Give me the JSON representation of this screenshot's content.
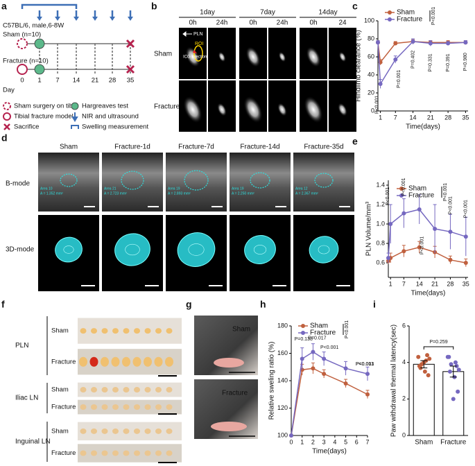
{
  "panel_labels": [
    "a",
    "b",
    "c",
    "d",
    "e",
    "f",
    "g",
    "h",
    "i"
  ],
  "design": {
    "strain": "C57BL/6, male,6-8W",
    "groups": [
      "Sham (n=10)",
      "Fracture (n=10)"
    ],
    "day_label": "Day",
    "days": [
      0,
      1,
      7,
      14,
      21,
      28,
      35
    ],
    "legend": [
      "Sham surgery on tibia",
      "Hargreaves test",
      "Tibial fracture model",
      "NIR and ultrasound",
      "Sacrifice",
      "Swelling measurement"
    ]
  },
  "imaging": {
    "timepoints": [
      "1day",
      "7day",
      "14day"
    ],
    "times": [
      "0h",
      "24h",
      "0h",
      "24h",
      "0h",
      "24"
    ],
    "rows": [
      "Sham",
      "Fracture"
    ],
    "callouts": [
      "PLN",
      "ROI",
      "ICG injection"
    ]
  },
  "ultrasound": {
    "columns": [
      "Sham",
      "Fracture-1d",
      "Fracture-7d",
      "Fracture-14d",
      "Fracture-35d"
    ],
    "rows": [
      "B-mode",
      "3D-mode"
    ],
    "areas": [
      [
        "Area 10",
        "A = 1.352 mm²"
      ],
      [
        "Area 21",
        "A = 2.723 mm²"
      ],
      [
        "Area 19",
        "A = 2.893 mm²"
      ],
      [
        "Area 19",
        "A = 2.250 mm²"
      ],
      [
        "Area 12",
        "A = 2.367 mm²"
      ]
    ]
  },
  "lymph_nodes": {
    "tissues": [
      "PLN",
      "Iliac LN",
      "Inguinal LN"
    ],
    "groups": [
      "Sham",
      "Fracture"
    ]
  },
  "paw": {
    "groups": [
      "Sham",
      "Fracture"
    ]
  },
  "chart_data": [
    {
      "type": "line",
      "ylabel": "Hindlimb clearance (%)",
      "xlabel": "Time(days)",
      "x": [
        0,
        1,
        7,
        14,
        21,
        28,
        35
      ],
      "xlim": [
        0,
        36
      ],
      "xticks": [
        1,
        7,
        14,
        21,
        28,
        35
      ],
      "ylim": [
        0,
        100
      ],
      "yticks": [
        0,
        20,
        40,
        60,
        80,
        100
      ],
      "series": [
        {
          "name": "Sham",
          "color": "#c0603e",
          "values": [
            76,
            54,
            75,
            77,
            76,
            76,
            76
          ],
          "errors": [
            2,
            3,
            2,
            2,
            2,
            2,
            2
          ]
        },
        {
          "name": "Fracture",
          "color": "#7568c0",
          "values": [
            76,
            30,
            57,
            77,
            75,
            75,
            76
          ],
          "errors": [
            2,
            5,
            4,
            3,
            3,
            2,
            2
          ]
        }
      ],
      "legend_note": "P<0.001",
      "annotations": [
        "P<0.001",
        "P=0.001",
        "P=0.402",
        "P=0.331",
        "P=0.391",
        "P=0.980"
      ]
    },
    {
      "type": "line",
      "ylabel": "PLN Volume/mm³",
      "xlabel": "Time(days)",
      "x": [
        0,
        1,
        7,
        14,
        21,
        28,
        35
      ],
      "xlim": [
        0,
        36
      ],
      "xticks": [
        1,
        7,
        14,
        21,
        28,
        35
      ],
      "ylim": [
        0.45,
        1.45
      ],
      "yticks": [
        0.6,
        0.8,
        {
          "value": 1.0,
          "label": "1.0"
        },
        1.2,
        1.4
      ],
      "series": [
        {
          "name": "Sham",
          "color": "#c0603e",
          "values": [
            0.62,
            0.65,
            0.72,
            0.76,
            0.71,
            0.63,
            0.6
          ],
          "errors": [
            0.03,
            0.05,
            0.06,
            0.06,
            0.06,
            0.04,
            0.04
          ]
        },
        {
          "name": "Fracture",
          "color": "#7568c0",
          "values": [
            0.65,
            1.0,
            1.11,
            1.15,
            0.95,
            0.92,
            0.87
          ],
          "errors": [
            0.05,
            0.2,
            0.15,
            0.15,
            0.25,
            0.18,
            0.2
          ]
        }
      ],
      "legend_note": "P<0.001",
      "annotations": [
        "P<0.001",
        "P<0.001",
        "P<0.001",
        "P<0.001",
        "P<0.001"
      ]
    },
    {
      "type": "line",
      "ylabel": "Relative sweling ratio (%)",
      "xlabel": "Time(days)",
      "x": [
        0,
        1,
        2,
        3,
        5,
        7
      ],
      "xlim": [
        0,
        7
      ],
      "xticks": [
        0,
        1,
        2,
        3,
        4,
        5,
        6,
        7
      ],
      "ylim": [
        100,
        180
      ],
      "yticks": [
        100,
        120,
        140,
        160,
        180
      ],
      "series": [
        {
          "name": "Sham",
          "color": "#c0603e",
          "values": [
            100,
            148,
            149,
            145,
            138,
            130
          ],
          "errors": [
            0,
            4,
            4,
            3,
            3,
            3
          ]
        },
        {
          "name": "Fracture",
          "color": "#7568c0",
          "values": [
            100,
            156,
            161,
            156,
            149,
            145
          ],
          "errors": [
            0,
            8,
            6,
            5,
            5,
            5
          ]
        }
      ],
      "legend_note": "P<0.001",
      "annotations": [
        "P=0.138",
        "P=0.017",
        "P<0.001",
        "P=0.013",
        "P<0.001"
      ]
    },
    {
      "type": "bar",
      "ylabel": "Paw withdrawal thermal latency(sec)",
      "categories": [
        "Sham",
        "Fracture"
      ],
      "values": [
        3.9,
        3.5
      ],
      "errors": [
        0.2,
        0.3
      ],
      "colors": [
        "#c0603e",
        "#7568c0"
      ],
      "points": [
        [
          4.3,
          4.1,
          3.9,
          4.2,
          3.5,
          3.7,
          3.3,
          4.0,
          3.8,
          4.4
        ],
        [
          4.3,
          4.0,
          3.9,
          3.6,
          3.2,
          3.5,
          2.4,
          2.0,
          4.3,
          3.8
        ]
      ],
      "ylim": [
        0,
        6
      ],
      "yticks": [
        0,
        2,
        4,
        6
      ],
      "annotations": [
        "P=0.259"
      ]
    }
  ]
}
